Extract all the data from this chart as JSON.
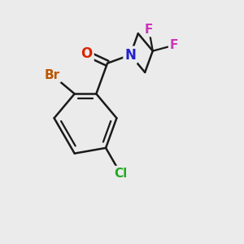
{
  "background_color": "#ebebeb",
  "bond_color": "#1a1a1a",
  "bond_width": 1.8,
  "atom_colors": {
    "O": "#dd2200",
    "N": "#2222cc",
    "Br": "#bb5500",
    "Cl": "#22aa22",
    "F1": "#cc33bb",
    "F2": "#cc33bb"
  },
  "atom_fontsizes": {
    "O": 12,
    "N": 12,
    "Br": 11,
    "Cl": 11,
    "F": 11
  },
  "figsize": [
    3.0,
    3.0
  ],
  "dpi": 100
}
